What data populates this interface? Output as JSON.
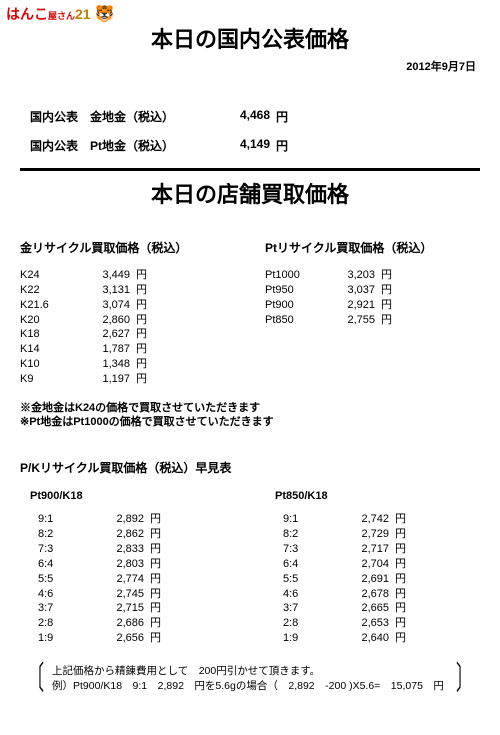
{
  "logo": {
    "text1": "はんこ",
    "text2": "屋さん",
    "num": "21",
    "icon": "🐯"
  },
  "title1": "本日の国内公表価格",
  "date": "2012年9月7日",
  "public": [
    {
      "label": "国内公表　金地金（税込）",
      "value": "4,468",
      "unit": "円"
    },
    {
      "label": "国内公表　Pt地金（税込）",
      "value": "4,149",
      "unit": "円"
    }
  ],
  "title2": "本日の店舗買取価格",
  "gold": {
    "header": "金リサイクル買取価格（税込）",
    "rows": [
      {
        "k": "K24",
        "v": "3,449",
        "u": "円"
      },
      {
        "k": "K22",
        "v": "3,131",
        "u": "円"
      },
      {
        "k": "K21.6",
        "v": "3,074",
        "u": "円"
      },
      {
        "k": "K20",
        "v": "2,860",
        "u": "円"
      },
      {
        "k": "K18",
        "v": "2,627",
        "u": "円"
      },
      {
        "k": "K14",
        "v": "1,787",
        "u": "円"
      },
      {
        "k": "K10",
        "v": "1,348",
        "u": "円"
      },
      {
        "k": "K9",
        "v": "1,197",
        "u": "円"
      }
    ]
  },
  "pt": {
    "header": "Ptリサイクル買取価格（税込）",
    "rows": [
      {
        "k": "Pt1000",
        "v": "3,203",
        "u": "円"
      },
      {
        "k": "Pt950",
        "v": "3,037",
        "u": "円"
      },
      {
        "k": "Pt900",
        "v": "2,921",
        "u": "円"
      },
      {
        "k": "Pt850",
        "v": "2,755",
        "u": "円"
      }
    ]
  },
  "notes": {
    "line1": "※金地金はK24の価格で買取させていただきます",
    "line2": "※Pt地金はPt1000の価格で買取させていただきます"
  },
  "quick_header": "P/Kリサイクル買取価格（税込）早見表",
  "quick1": {
    "header": "Pt900/K18",
    "rows": [
      {
        "r": "9:1",
        "v": "2,892",
        "u": "円"
      },
      {
        "r": "8:2",
        "v": "2,862",
        "u": "円"
      },
      {
        "r": "7:3",
        "v": "2,833",
        "u": "円"
      },
      {
        "r": "6:4",
        "v": "2,803",
        "u": "円"
      },
      {
        "r": "5:5",
        "v": "2,774",
        "u": "円"
      },
      {
        "r": "4:6",
        "v": "2,745",
        "u": "円"
      },
      {
        "r": "3:7",
        "v": "2,715",
        "u": "円"
      },
      {
        "r": "2:8",
        "v": "2,686",
        "u": "円"
      },
      {
        "r": "1:9",
        "v": "2,656",
        "u": "円"
      }
    ]
  },
  "quick2": {
    "header": "Pt850/K18",
    "rows": [
      {
        "r": "9:1",
        "v": "2,742",
        "u": "円"
      },
      {
        "r": "8:2",
        "v": "2,729",
        "u": "円"
      },
      {
        "r": "7:3",
        "v": "2,717",
        "u": "円"
      },
      {
        "r": "6:4",
        "v": "2,704",
        "u": "円"
      },
      {
        "r": "5:5",
        "v": "2,691",
        "u": "円"
      },
      {
        "r": "4:6",
        "v": "2,678",
        "u": "円"
      },
      {
        "r": "3:7",
        "v": "2,665",
        "u": "円"
      },
      {
        "r": "2:8",
        "v": "2,653",
        "u": "円"
      },
      {
        "r": "1:9",
        "v": "2,640",
        "u": "円"
      }
    ]
  },
  "footer": {
    "line1": "上記価格から精錬費用として　200円引かせて頂きます。",
    "line2": "例）Pt900/K18　9:1　2,892　円を5.6gの場合（　2,892　-200 )X5.6=　15,075　円"
  }
}
